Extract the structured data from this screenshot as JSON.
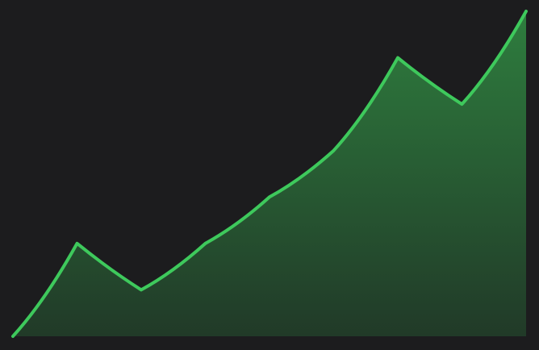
{
  "colors": {
    "background": "#1c1c1e",
    "line": "#3ec95c",
    "fill_top": "#2e7d3e",
    "fill_bottom": "#213a28"
  },
  "chart_data": {
    "type": "area",
    "title": "",
    "xlabel": "",
    "ylabel": "",
    "grid": false,
    "legend": "none",
    "x": [
      0,
      1,
      2,
      3,
      4,
      5,
      6,
      7,
      8
    ],
    "values": [
      0,
      29,
      14.5,
      29,
      43.5,
      58,
      87,
      72.5,
      101.5
    ],
    "xlim": [
      0,
      8
    ],
    "ylim": [
      0,
      101.5
    ]
  }
}
